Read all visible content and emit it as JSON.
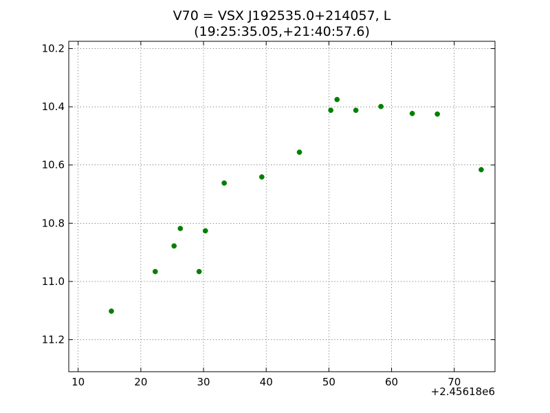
{
  "chart_data": {
    "type": "scatter",
    "title": "V70 = VSX J192535.0+214057, L",
    "subtitle": "(19:25:35.05,+21:40:57.6)",
    "xlabel": "",
    "ylabel": "",
    "x_offset_label": "+2.45618e6",
    "xlim": [
      8.5,
      76.5
    ],
    "ylim": [
      11.31,
      10.175
    ],
    "y_inverted": true,
    "grid": true,
    "marker_color": "#008000",
    "x_ticks": [
      10,
      20,
      30,
      40,
      50,
      60,
      70
    ],
    "x_tick_labels": [
      "10",
      "20",
      "30",
      "40",
      "50",
      "60",
      "70"
    ],
    "y_ticks": [
      10.2,
      10.4,
      10.6,
      10.8,
      11.0,
      11.2
    ],
    "y_tick_labels": [
      "10.2",
      "10.4",
      "10.6",
      "10.8",
      "11.0",
      "11.2"
    ],
    "series": [
      {
        "points": [
          {
            "x": 15.3,
            "y": 11.102
          },
          {
            "x": 22.3,
            "y": 10.966
          },
          {
            "x": 25.3,
            "y": 10.878
          },
          {
            "x": 26.3,
            "y": 10.818
          },
          {
            "x": 29.3,
            "y": 10.966
          },
          {
            "x": 30.3,
            "y": 10.826
          },
          {
            "x": 33.3,
            "y": 10.662
          },
          {
            "x": 39.3,
            "y": 10.641
          },
          {
            "x": 45.3,
            "y": 10.556
          },
          {
            "x": 50.3,
            "y": 10.412
          },
          {
            "x": 51.3,
            "y": 10.375
          },
          {
            "x": 54.3,
            "y": 10.412
          },
          {
            "x": 58.3,
            "y": 10.399
          },
          {
            "x": 63.3,
            "y": 10.423
          },
          {
            "x": 67.3,
            "y": 10.425
          },
          {
            "x": 74.3,
            "y": 10.616
          }
        ]
      }
    ]
  }
}
